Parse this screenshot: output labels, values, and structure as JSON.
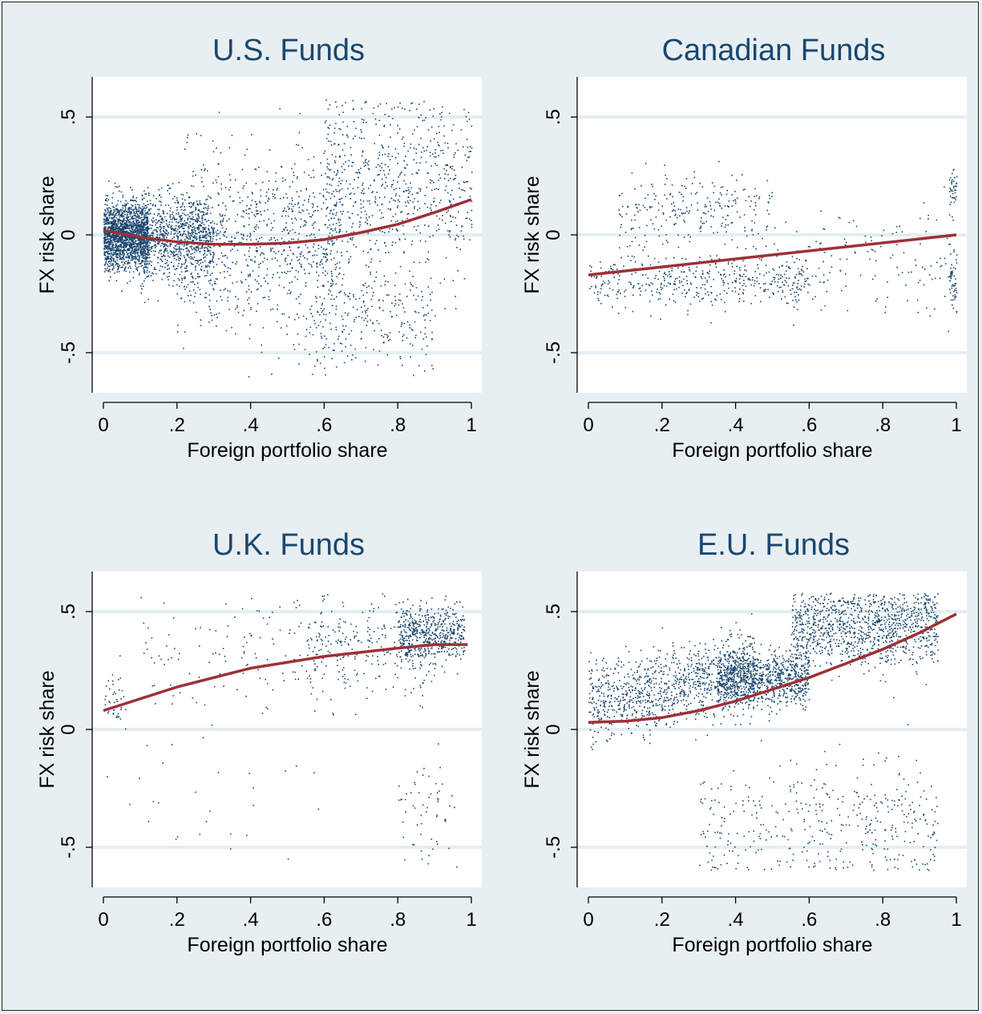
{
  "colors": {
    "background": "#e8eff2",
    "plot_background": "#ffffff",
    "points": "#1a476f",
    "fit_line": "#9e3037",
    "gridline": "#e4eef1",
    "title": "#1a476f"
  },
  "chart_data": [
    {
      "type": "scatter",
      "title": "U.S. Funds",
      "xlabel": "Foreign portfolio share",
      "ylabel": "FX risk share",
      "xlim": [
        0,
        1
      ],
      "ylim": [
        -0.67,
        0.67
      ],
      "xticks": [
        "0",
        ".2",
        ".4",
        ".6",
        ".8",
        "1"
      ],
      "yticks": [
        "-.5",
        "0",
        ".5"
      ],
      "grid": "horizontal at y ticks",
      "fit_line": {
        "x": [
          0,
          0.1,
          0.2,
          0.3,
          0.4,
          0.5,
          0.6,
          0.7,
          0.8,
          0.9,
          1.0
        ],
        "y": [
          0.02,
          -0.01,
          -0.03,
          -0.04,
          -0.04,
          -0.035,
          -0.02,
          0.01,
          0.045,
          0.095,
          0.15
        ]
      },
      "clusters": [
        {
          "n": 1800,
          "x": [
            0,
            0.12
          ],
          "y_mean": 0.0,
          "y_sd": 0.07
        },
        {
          "n": 900,
          "x": [
            0.1,
            0.3
          ],
          "y_mean": -0.01,
          "y_sd": 0.09
        },
        {
          "n": 900,
          "x": [
            0.2,
            0.65
          ],
          "y_mean": -0.04,
          "y_sd": 0.2
        },
        {
          "n": 700,
          "x": [
            0.6,
            1.0
          ],
          "y_mean": 0.2,
          "y_sd": 0.2
        },
        {
          "n": 250,
          "x": [
            0.55,
            0.9
          ],
          "y_mean": -0.35,
          "y_sd": 0.12
        }
      ]
    },
    {
      "type": "scatter",
      "title": "Canadian Funds",
      "xlabel": "Foreign portfolio share",
      "ylabel": "FX risk share",
      "xlim": [
        0,
        1
      ],
      "ylim": [
        -0.67,
        0.67
      ],
      "xticks": [
        "0",
        ".2",
        ".4",
        ".6",
        ".8",
        "1"
      ],
      "yticks": [
        "-.5",
        "0",
        ".5"
      ],
      "grid": "horizontal at y ticks",
      "fit_line": {
        "x": [
          0,
          1
        ],
        "y": [
          -0.17,
          0.0
        ]
      },
      "clusters": [
        {
          "n": 450,
          "x": [
            0.0,
            0.6
          ],
          "y_mean": -0.19,
          "y_sd": 0.06
        },
        {
          "n": 250,
          "x": [
            0.08,
            0.5
          ],
          "y_mean": 0.1,
          "y_sd": 0.08
        },
        {
          "n": 150,
          "x": [
            0.5,
            0.98
          ],
          "y_mean": -0.12,
          "y_sd": 0.12
        },
        {
          "n": 60,
          "x": [
            0.98,
            1.0
          ],
          "y_mean": -0.18,
          "y_sd": 0.07
        },
        {
          "n": 40,
          "x": [
            0.98,
            1.0
          ],
          "y_mean": 0.18,
          "y_sd": 0.06
        }
      ]
    },
    {
      "type": "scatter",
      "title": "U.K. Funds",
      "xlabel": "Foreign portfolio share",
      "ylabel": "FX risk share",
      "xlim": [
        0,
        1
      ],
      "ylim": [
        -0.67,
        0.67
      ],
      "xticks": [
        "0",
        ".2",
        ".4",
        ".6",
        ".8",
        "1"
      ],
      "yticks": [
        "-.5",
        "0",
        ".5"
      ],
      "grid": "horizontal at y ticks",
      "fit_line": {
        "x": [
          0,
          0.2,
          0.4,
          0.6,
          0.8,
          0.9,
          0.99
        ],
        "y": [
          0.08,
          0.18,
          0.26,
          0.31,
          0.345,
          0.36,
          0.36
        ]
      },
      "clusters": [
        {
          "n": 500,
          "x": [
            0.8,
            0.98
          ],
          "y_mean": 0.41,
          "y_sd": 0.06
        },
        {
          "n": 300,
          "x": [
            0.55,
            0.9
          ],
          "y_mean": 0.35,
          "y_sd": 0.1
        },
        {
          "n": 120,
          "x": [
            0.1,
            0.6
          ],
          "y_mean": 0.3,
          "y_sd": 0.13
        },
        {
          "n": 40,
          "x": [
            0.0,
            0.06
          ],
          "y_mean": 0.12,
          "y_sd": 0.05
        },
        {
          "n": 60,
          "x": [
            0.8,
            0.96
          ],
          "y_mean": -0.35,
          "y_sd": 0.13
        },
        {
          "n": 30,
          "x": [
            0.0,
            0.6
          ],
          "y_mean": -0.3,
          "y_sd": 0.15
        }
      ]
    },
    {
      "type": "scatter",
      "title": "E.U. Funds",
      "xlabel": "Foreign portfolio share",
      "ylabel": "FX risk share",
      "xlim": [
        0,
        1
      ],
      "ylim": [
        -0.67,
        0.67
      ],
      "xticks": [
        "0",
        ".2",
        ".4",
        ".6",
        ".8",
        "1"
      ],
      "yticks": [
        "-.5",
        "0",
        ".5"
      ],
      "grid": "horizontal at y ticks",
      "fit_line": {
        "x": [
          0,
          0.1,
          0.2,
          0.3,
          0.4,
          0.5,
          0.6,
          0.7,
          0.8,
          0.9,
          1.0
        ],
        "y": [
          0.03,
          0.035,
          0.05,
          0.08,
          0.12,
          0.17,
          0.22,
          0.28,
          0.34,
          0.41,
          0.49
        ]
      },
      "clusters": [
        {
          "n": 1100,
          "x": [
            0.0,
            0.45
          ],
          "y_mean": 0.18,
          "y_sd": 0.08,
          "trend": 0.3
        },
        {
          "n": 900,
          "x": [
            0.35,
            0.6
          ],
          "y_mean": 0.22,
          "y_sd": 0.06
        },
        {
          "n": 1100,
          "x": [
            0.55,
            0.95
          ],
          "y_mean": 0.44,
          "y_sd": 0.08
        },
        {
          "n": 400,
          "x": [
            0.3,
            0.95
          ],
          "y_mean": -0.4,
          "y_sd": 0.14
        }
      ]
    }
  ]
}
